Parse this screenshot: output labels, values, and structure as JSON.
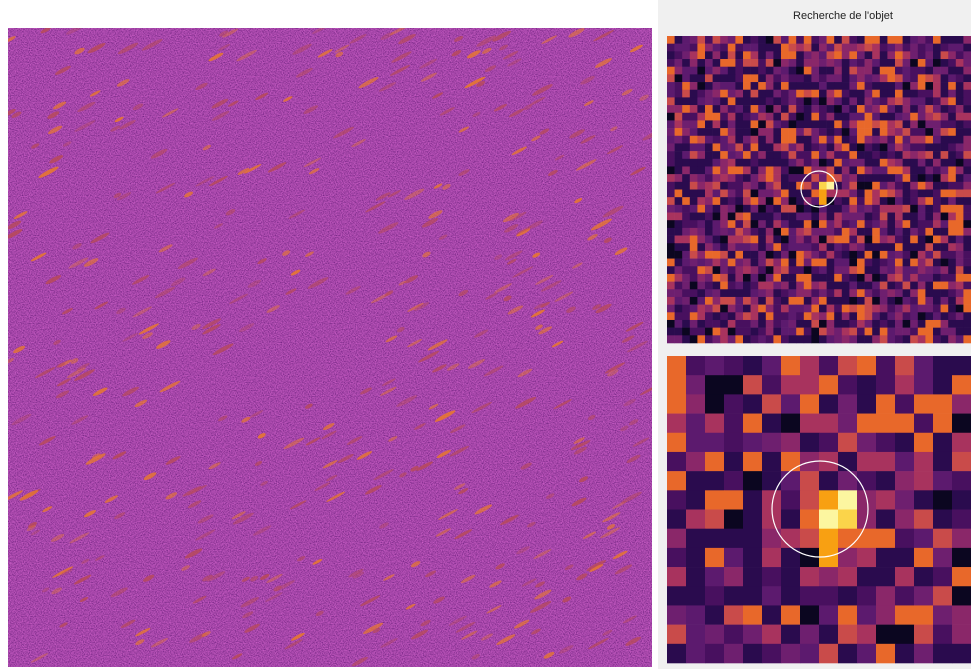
{
  "panel": {
    "title": "Recherche de l'objet"
  }
}
